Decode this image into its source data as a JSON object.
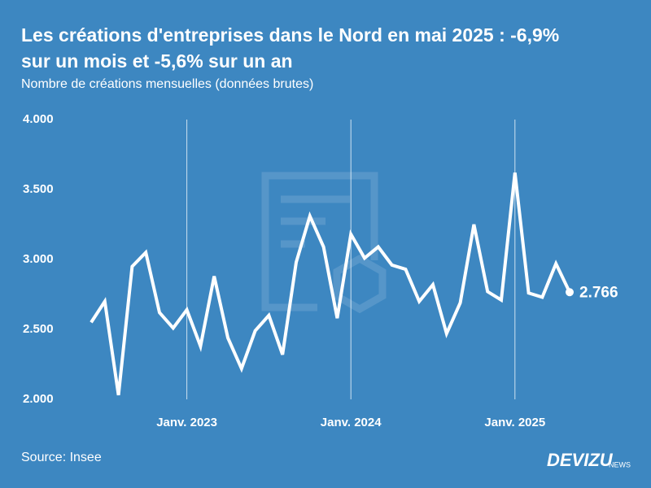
{
  "chart_data": {
    "type": "line",
    "title": [
      "Les créations d'entreprises dans le Nord en mai 2025 : -6,9%",
      "sur un mois et -5,6% sur un an"
    ],
    "subtitle": "Nombre de créations mensuelles (données brutes)",
    "source": "Source: Insee",
    "brand": {
      "name": "DEVIZU",
      "suffix": "NEWS"
    },
    "x": [
      "2022-06",
      "2022-07",
      "2022-08",
      "2022-09",
      "2022-10",
      "2022-11",
      "2022-12",
      "2023-01",
      "2023-02",
      "2023-03",
      "2023-04",
      "2023-05",
      "2023-06",
      "2023-07",
      "2023-08",
      "2023-09",
      "2023-10",
      "2023-11",
      "2023-12",
      "2024-01",
      "2024-02",
      "2024-03",
      "2024-04",
      "2024-05",
      "2024-06",
      "2024-07",
      "2024-08",
      "2024-09",
      "2024-10",
      "2024-11",
      "2024-12",
      "2025-01",
      "2025-02",
      "2025-03",
      "2025-04",
      "2025-05"
    ],
    "series": [
      {
        "name": "Créations",
        "color": "#ffffff",
        "values": [
          2550,
          2700,
          2030,
          2950,
          3050,
          2620,
          2510,
          2640,
          2380,
          2880,
          2440,
          2220,
          2490,
          2600,
          2320,
          2980,
          3310,
          3090,
          2580,
          3180,
          3010,
          3090,
          2960,
          2930,
          2700,
          2820,
          2470,
          2690,
          3250,
          2770,
          2710,
          3620,
          2760,
          2730,
          2970,
          2766
        ],
        "value_labels": [
          null,
          null,
          null,
          null,
          null,
          null,
          null,
          null,
          null,
          null,
          null,
          null,
          null,
          null,
          null,
          null,
          null,
          null,
          null,
          null,
          null,
          null,
          null,
          null,
          null,
          null,
          null,
          null,
          null,
          null,
          null,
          null,
          null,
          null,
          null,
          "2.766"
        ]
      }
    ],
    "ylim": [
      2000,
      4000
    ],
    "yticks": [
      {
        "value": 2000,
        "label": "2.000"
      },
      {
        "value": 2500,
        "label": "2.500"
      },
      {
        "value": 3000,
        "label": "3.000"
      },
      {
        "value": 3500,
        "label": "3.500"
      },
      {
        "value": 4000,
        "label": "4.000"
      }
    ],
    "xticks": [
      {
        "value": "2023-01",
        "label": "Janv. 2023"
      },
      {
        "value": "2024-01",
        "label": "Janv. 2024"
      },
      {
        "value": "2025-01",
        "label": "Janv. 2025"
      }
    ],
    "grid": "x"
  }
}
